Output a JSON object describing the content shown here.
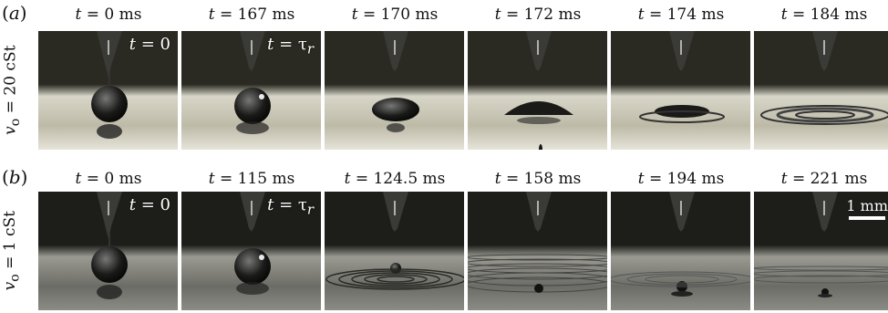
{
  "figure": {
    "rows": [
      {
        "panel": "a",
        "viscosity_symbol": "v",
        "viscosity_sub": "o",
        "viscosity_value": "= 20 cSt",
        "frames": [
          {
            "t_prefix": "t",
            "t_value": "= 0 ms",
            "inset_symbol": "t",
            "inset_value": "= 0",
            "stage": "drop"
          },
          {
            "t_prefix": "t",
            "t_value": "= 167 ms",
            "inset_symbol": "t",
            "inset_value": "= τ",
            "inset_sub": "r",
            "stage": "drop-rest"
          },
          {
            "t_prefix": "t",
            "t_value": "= 170 ms",
            "stage": "spread"
          },
          {
            "t_prefix": "t",
            "t_value": "= 172 ms",
            "stage": "cone"
          },
          {
            "t_prefix": "t",
            "t_value": "= 174 ms",
            "stage": "flat"
          },
          {
            "t_prefix": "t",
            "t_value": "= 184 ms",
            "stage": "rings"
          }
        ]
      },
      {
        "panel": "b",
        "viscosity_symbol": "v",
        "viscosity_sub": "o",
        "viscosity_value": "= 1 cSt",
        "frames": [
          {
            "t_prefix": "t",
            "t_value": "= 0 ms",
            "inset_symbol": "t",
            "inset_value": "= 0",
            "stage": "drop"
          },
          {
            "t_prefix": "t",
            "t_value": "= 115 ms",
            "inset_symbol": "t",
            "inset_value": "= τ",
            "inset_sub": "r",
            "stage": "drop-rest"
          },
          {
            "t_prefix": "t",
            "t_value": "= 124.5 ms",
            "stage": "daughter"
          },
          {
            "t_prefix": "t",
            "t_value": "= 158 ms",
            "stage": "waves"
          },
          {
            "t_prefix": "t",
            "t_value": "= 194 ms",
            "stage": "daughter-small"
          },
          {
            "t_prefix": "t",
            "t_value": "= 221 ms",
            "stage": "tiny",
            "scale_bar": "1 mm"
          }
        ]
      }
    ]
  }
}
